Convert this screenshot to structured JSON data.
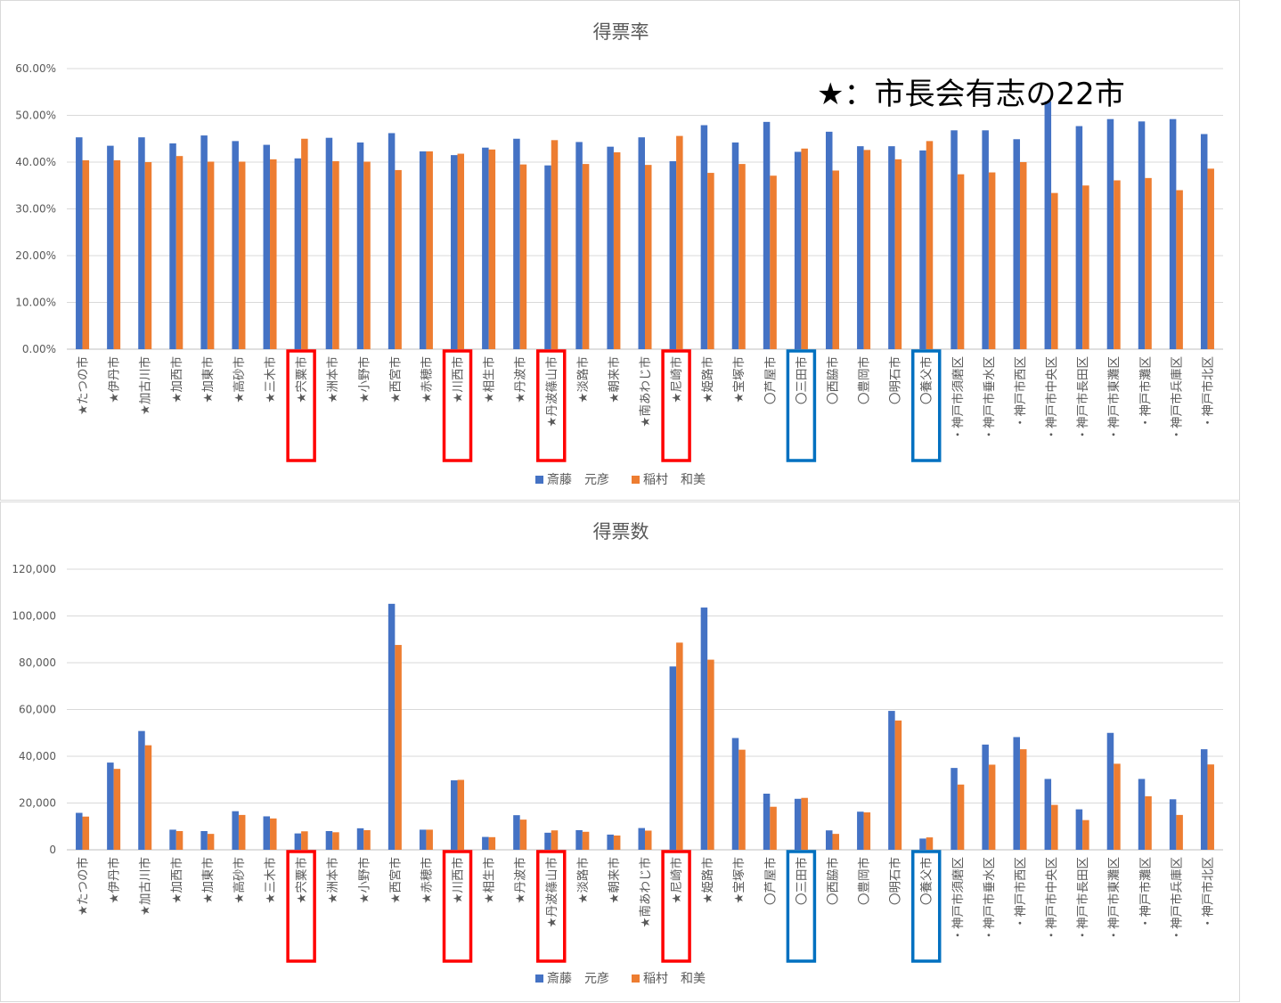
{
  "colors": {
    "series1": "#4472c4",
    "series2": "#ed7d31",
    "highlight_red": "#ff0000",
    "highlight_blue": "#0070c0"
  },
  "categories": [
    "★たつの市",
    "★伊丹市",
    "★加古川市",
    "★加西市",
    "★加東市",
    "★高砂市",
    "★三木市",
    "★宍粟市",
    "★洲本市",
    "★小野市",
    "★西宮市",
    "★赤穂市",
    "★川西市",
    "★相生市",
    "★丹波市",
    "★丹波篠山市",
    "★淡路市",
    "★朝来市",
    "★南あわじ市",
    "★尼崎市",
    "★姫路市",
    "★宝塚市",
    "〇芦屋市",
    "〇三田市",
    "〇西脇市",
    "〇豊岡市",
    "〇明石市",
    "〇養父市",
    "・神戸市須磨区",
    "・神戸市垂水区",
    "・神戸市西区",
    "・神戸市中央区",
    "・神戸市長田区",
    "・神戸市東灘区",
    "・神戸市灘区",
    "・神戸市兵庫区",
    "・神戸市北区"
  ],
  "highlights": {
    "red": [
      "★宍粟市",
      "★川西市",
      "★丹波篠山市",
      "★尼崎市"
    ],
    "blue": [
      "〇三田市",
      "〇養父市"
    ]
  },
  "annotation": "★：市長会有志の22市",
  "chart_data": [
    {
      "type": "bar",
      "title": "得票率",
      "ylim": [
        0,
        60
      ],
      "yticks": [
        "0.00%",
        "10.00%",
        "20.00%",
        "30.00%",
        "40.00%",
        "50.00%",
        "60.00%"
      ],
      "grid": true,
      "legend": "bottom",
      "series": [
        {
          "name": "斎藤　元彦",
          "values": [
            45.3,
            43.5,
            45.3,
            44.0,
            45.7,
            44.5,
            43.7,
            40.8,
            45.2,
            44.2,
            46.2,
            42.3,
            41.5,
            43.1,
            45.0,
            39.3,
            44.3,
            43.3,
            45.3,
            40.2,
            47.9,
            44.2,
            48.6,
            42.2,
            46.5,
            43.4,
            43.4,
            42.5,
            46.8,
            46.8,
            44.9,
            53.0,
            47.7,
            49.2,
            48.7,
            49.2,
            46.0
          ]
        },
        {
          "name": "稲村　和美",
          "values": [
            40.4,
            40.4,
            40.0,
            41.3,
            40.1,
            40.1,
            40.6,
            45.0,
            40.2,
            40.1,
            38.3,
            42.3,
            41.8,
            42.7,
            39.5,
            44.7,
            39.6,
            42.1,
            39.4,
            45.6,
            37.7,
            39.6,
            37.1,
            42.9,
            38.2,
            42.6,
            40.6,
            44.5,
            37.4,
            37.8,
            40.0,
            33.4,
            35.0,
            36.1,
            36.6,
            34.0,
            38.6
          ]
        }
      ]
    },
    {
      "type": "bar",
      "title": "得票数",
      "ylim": [
        0,
        120000
      ],
      "yticks": [
        "0",
        "20,000",
        "40,000",
        "60,000",
        "80,000",
        "100,000",
        "120,000"
      ],
      "grid": true,
      "legend": "bottom",
      "series": [
        {
          "name": "斎藤　元彦",
          "values": [
            15800,
            37300,
            50800,
            8600,
            8000,
            16500,
            14300,
            7000,
            8000,
            9200,
            105200,
            8600,
            29700,
            5500,
            14800,
            7300,
            8400,
            6500,
            9300,
            78400,
            103600,
            47800,
            24000,
            21800,
            8300,
            16300,
            59400,
            4800,
            35000,
            45000,
            48200,
            30300,
            17300,
            50000,
            30300,
            21600,
            43000
          ]
        },
        {
          "name": "稲村　和美",
          "values": [
            14200,
            34600,
            44700,
            8000,
            6800,
            14900,
            13400,
            7900,
            7500,
            8400,
            87600,
            8600,
            29900,
            5400,
            12900,
            8300,
            7700,
            6100,
            8200,
            88600,
            81300,
            42800,
            18400,
            22200,
            6800,
            16000,
            55300,
            5300,
            27900,
            36400,
            43000,
            19200,
            12700,
            36800,
            22900,
            14900,
            36500
          ]
        }
      ]
    }
  ]
}
